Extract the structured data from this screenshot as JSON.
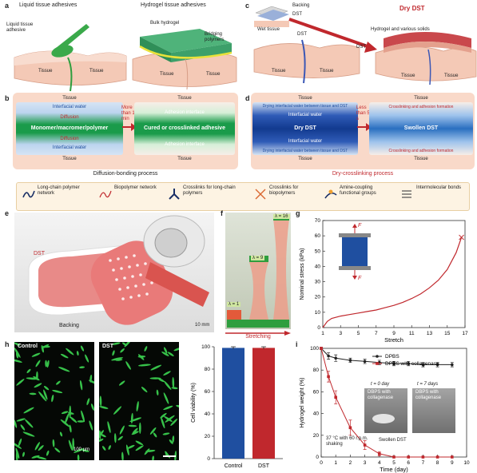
{
  "panels": {
    "a": {
      "letter": "a",
      "title_left": "Liquid tissue adhesives",
      "title_right": "Hydrogel tissue adhesives",
      "liquid_label": "Liquid tissue adhesive",
      "bulk_label": "Bulk hydrogel",
      "bridging_label": "Bridging polymers",
      "tissue": "Tissue"
    },
    "b": {
      "letter": "b",
      "tissue": "Tissue",
      "interfacial_water": "Interfacial water",
      "diffusion": "Diffusion",
      "monomer_label": "Monomer/macromer/polymer",
      "time_label": "More than 1 min",
      "adhesion_interface": "Adhesion interface",
      "cured_label": "Cured or crosslinked adhesive",
      "process": "Diffusion-bonding process"
    },
    "c": {
      "letter": "c",
      "title": "Dry DST",
      "backing": "Backing",
      "dst": "DST",
      "wet_tissue": "Wet tissue",
      "hydrogel_solids": "Hydrogel and various solids",
      "tissue": "Tissue"
    },
    "d": {
      "letter": "d",
      "tissue": "Tissue",
      "drying_top": "Drying interfacial water between tissue and DST",
      "interfacial_water": "Interfacial water",
      "dry_dst": "Dry DST",
      "drying_bottom": "Drying interfacial water between tissue and DST",
      "time_label": "Less than 5 s",
      "crosslinking_top": "Crosslinking and adhesion formation",
      "swollen_dst": "Swollen DST",
      "crosslinking_bottom": "Crosslinking and adhesion formation",
      "process": "Dry-crosslinking process"
    },
    "legend": [
      "Long-chain polymer network",
      "Biopolymer network",
      "Crosslinks for long-chain polymers",
      "Crosslinks for biopolymers",
      "Amine-coupling functional groups",
      "Intermolecular bonds"
    ],
    "e": {
      "letter": "e",
      "dst": "DST",
      "backing": "Backing",
      "scale": "10 mm"
    },
    "f": {
      "letter": "f",
      "lambda1": "λ = 1",
      "lambda9": "λ = 9",
      "lambda16": "λ = 16",
      "stretching": "Stretching"
    },
    "g": {
      "letter": "g",
      "F": "F"
    },
    "h": {
      "letter": "h",
      "control": "Control",
      "dst": "DST",
      "scale": "100 µm"
    },
    "i": {
      "letter": "i",
      "day0": "t = 0 day",
      "day7": "t = 7 days",
      "photo0": "DBPS with collagenase",
      "photo7": "DBPS with collagenase",
      "swollen": "Swollen DST",
      "condition": "37 °C with 60 r.p.m. shaking"
    }
  },
  "colors": {
    "red": "#c0282d",
    "blue": "#1f4fa0",
    "green": "#2e9e3e",
    "skin": "#f2c7b4",
    "tissue_dark": "#e0a58c"
  },
  "chart_data": [
    {
      "type": "line",
      "id": "g",
      "title": "",
      "xlabel": "Stretch",
      "ylabel": "Nominal stress (kPa)",
      "xlim": [
        1,
        17
      ],
      "ylim": [
        0,
        70
      ],
      "xticks": [
        1,
        3,
        5,
        7,
        9,
        11,
        13,
        15,
        17
      ],
      "yticks": [
        0,
        10,
        20,
        30,
        40,
        50,
        60,
        70
      ],
      "series": [
        {
          "name": "",
          "color": "#c0282d",
          "x": [
            1,
            1.5,
            2,
            3,
            4,
            5,
            6,
            7,
            8,
            9,
            10,
            11,
            12,
            13,
            14,
            15,
            16,
            16.6
          ],
          "y": [
            0,
            4,
            6,
            7.5,
            8.5,
            9.5,
            10.5,
            11.5,
            13,
            14.5,
            16.5,
            19,
            22,
            26,
            31,
            38,
            49,
            59
          ]
        }
      ]
    },
    {
      "type": "bar",
      "id": "h",
      "ylabel": "Cell viability (%)",
      "categories": [
        "Control",
        "DST"
      ],
      "values": [
        99,
        99
      ],
      "errors": [
        1,
        1
      ],
      "colors": [
        "#1f4fa0",
        "#c0282d"
      ],
      "ylim": [
        0,
        100
      ],
      "yticks": [
        0,
        20,
        40,
        60,
        80,
        100
      ]
    },
    {
      "type": "line",
      "id": "i",
      "xlabel": "Time (day)",
      "ylabel": "Hydrogel weight (%)",
      "xlim": [
        0,
        10
      ],
      "ylim": [
        0,
        100
      ],
      "xticks": [
        0,
        1,
        2,
        3,
        4,
        5,
        6,
        7,
        8,
        9,
        10
      ],
      "yticks": [
        0,
        20,
        40,
        60,
        80,
        100
      ],
      "legend": "top-right",
      "series": [
        {
          "name": "DPBS",
          "color": "#222222",
          "marker": "circle",
          "x": [
            0,
            0.5,
            1,
            2,
            3,
            4,
            5,
            6,
            7,
            8,
            9
          ],
          "y": [
            100,
            93,
            91,
            89,
            88,
            87,
            86,
            86,
            85,
            85,
            85
          ],
          "err": [
            1,
            3,
            3,
            2,
            2,
            2,
            2,
            2,
            2,
            2,
            2
          ]
        },
        {
          "name": "DPBS with collagenase",
          "color": "#c0282d",
          "marker": "square",
          "x": [
            0,
            0.5,
            1,
            2,
            3,
            4,
            5,
            6,
            7,
            8,
            9
          ],
          "y": [
            100,
            74,
            55,
            27,
            11,
            3,
            0,
            0,
            0,
            0,
            0
          ],
          "err": [
            1,
            5,
            6,
            7,
            4,
            2,
            0,
            0,
            0,
            0,
            0
          ]
        }
      ]
    }
  ]
}
